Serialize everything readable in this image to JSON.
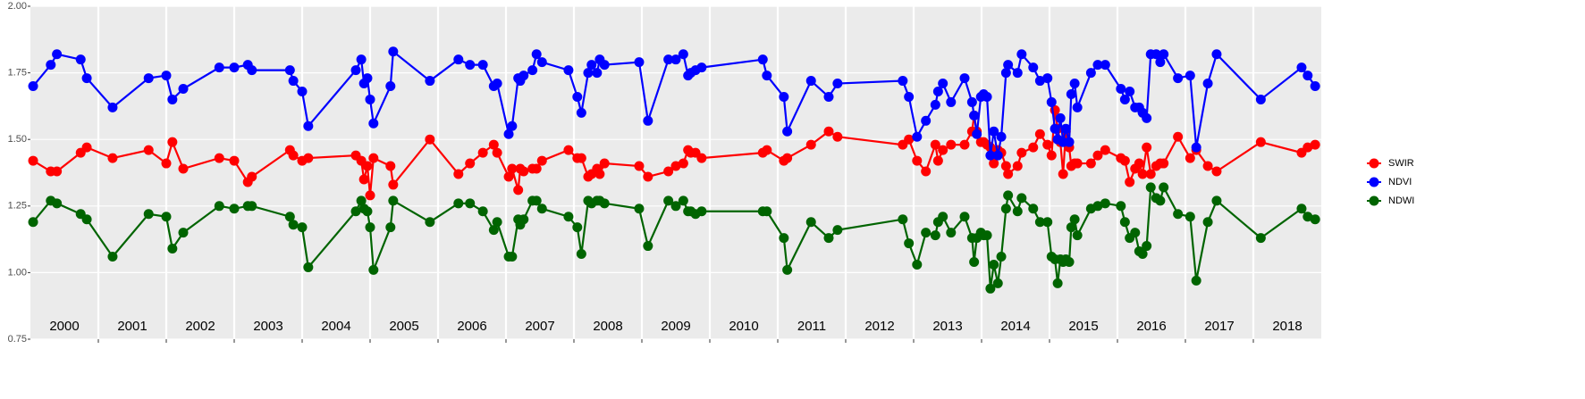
{
  "chart_data": {
    "type": "line",
    "x": [
      2000.04,
      2000.3,
      2000.39,
      2000.74,
      2000.83,
      2001.21,
      2001.74,
      2002.0,
      2002.09,
      2002.25,
      2002.78,
      2003.0,
      2003.2,
      2003.26,
      2003.82,
      2003.87,
      2004.0,
      2004.09,
      2004.79,
      2004.87,
      2004.91,
      2004.96,
      2005.0,
      2005.05,
      2005.3,
      2005.34,
      2005.88,
      2006.3,
      2006.47,
      2006.66,
      2006.82,
      2006.87,
      2007.04,
      2007.09,
      2007.18,
      2007.21,
      2007.26,
      2007.39,
      2007.45,
      2007.53,
      2007.92,
      2008.05,
      2008.11,
      2008.21,
      2008.26,
      2008.34,
      2008.38,
      2008.45,
      2008.96,
      2009.09,
      2009.39,
      2009.5,
      2009.61,
      2009.68,
      2009.72,
      2009.79,
      2009.88,
      2010.78,
      2010.84,
      2011.09,
      2011.14,
      2011.49,
      2011.75,
      2011.88,
      2012.84,
      2012.93,
      2013.05,
      2013.18,
      2013.32,
      2013.36,
      2013.43,
      2013.55,
      2013.75,
      2013.86,
      2013.89,
      2013.93,
      2013.99,
      2014.03,
      2014.08,
      2014.13,
      2014.18,
      2014.24,
      2014.29,
      2014.36,
      2014.39,
      2014.53,
      2014.59,
      2014.76,
      2014.86,
      2014.97,
      2015.03,
      2015.08,
      2015.12,
      2015.16,
      2015.2,
      2015.24,
      2015.29,
      2015.32,
      2015.37,
      2015.41,
      2015.61,
      2015.71,
      2015.82,
      2016.05,
      2016.11,
      2016.18,
      2016.26,
      2016.32,
      2016.37,
      2016.43,
      2016.49,
      2016.57,
      2016.63,
      2016.68,
      2016.89,
      2017.07,
      2017.16,
      2017.33,
      2017.46,
      2018.11,
      2018.71,
      2018.8,
      2018.91
    ],
    "series": [
      {
        "name": "SWIR",
        "color": "#ff0000",
        "values": [
          1.42,
          1.38,
          1.38,
          1.45,
          1.47,
          1.43,
          1.46,
          1.41,
          1.49,
          1.39,
          1.43,
          1.42,
          1.34,
          1.36,
          1.46,
          1.44,
          1.42,
          1.43,
          1.44,
          1.42,
          1.35,
          1.4,
          1.29,
          1.43,
          1.4,
          1.33,
          1.5,
          1.37,
          1.41,
          1.45,
          1.48,
          1.45,
          1.36,
          1.39,
          1.31,
          1.39,
          1.38,
          1.39,
          1.39,
          1.42,
          1.46,
          1.43,
          1.43,
          1.36,
          1.37,
          1.39,
          1.37,
          1.41,
          1.4,
          1.36,
          1.38,
          1.4,
          1.41,
          1.46,
          1.45,
          1.45,
          1.43,
          1.45,
          1.46,
          1.42,
          1.43,
          1.48,
          1.53,
          1.51,
          1.48,
          1.5,
          1.42,
          1.38,
          1.48,
          1.42,
          1.46,
          1.48,
          1.48,
          1.53,
          1.59,
          1.53,
          1.49,
          1.49,
          1.48,
          1.47,
          1.41,
          1.46,
          1.45,
          1.4,
          1.37,
          1.4,
          1.45,
          1.47,
          1.52,
          1.48,
          1.44,
          1.61,
          1.54,
          1.49,
          1.37,
          1.53,
          1.47,
          1.4,
          1.41,
          1.41,
          1.41,
          1.44,
          1.46,
          1.43,
          1.42,
          1.34,
          1.39,
          1.41,
          1.37,
          1.47,
          1.37,
          1.4,
          1.41,
          1.41,
          1.51,
          1.43,
          1.46,
          1.4,
          1.38,
          1.49,
          1.45,
          1.47,
          1.48
        ]
      },
      {
        "name": "NDVI",
        "color": "#0000ff",
        "values": [
          1.7,
          1.78,
          1.82,
          1.8,
          1.73,
          1.62,
          1.73,
          1.74,
          1.65,
          1.69,
          1.77,
          1.77,
          1.78,
          1.76,
          1.76,
          1.72,
          1.68,
          1.55,
          1.76,
          1.8,
          1.71,
          1.73,
          1.65,
          1.56,
          1.7,
          1.83,
          1.72,
          1.8,
          1.78,
          1.78,
          1.7,
          1.71,
          1.52,
          1.55,
          1.73,
          1.72,
          1.74,
          1.76,
          1.82,
          1.79,
          1.76,
          1.66,
          1.6,
          1.75,
          1.78,
          1.75,
          1.8,
          1.78,
          1.79,
          1.57,
          1.8,
          1.8,
          1.82,
          1.74,
          1.75,
          1.76,
          1.77,
          1.8,
          1.74,
          1.66,
          1.53,
          1.72,
          1.66,
          1.71,
          1.72,
          1.66,
          1.51,
          1.57,
          1.63,
          1.68,
          1.71,
          1.64,
          1.73,
          1.64,
          1.59,
          1.52,
          1.66,
          1.67,
          1.66,
          1.44,
          1.53,
          1.44,
          1.51,
          1.75,
          1.78,
          1.75,
          1.82,
          1.77,
          1.72,
          1.73,
          1.64,
          1.54,
          1.5,
          1.58,
          1.49,
          1.54,
          1.49,
          1.67,
          1.71,
          1.62,
          1.75,
          1.78,
          1.78,
          1.69,
          1.65,
          1.68,
          1.62,
          1.62,
          1.6,
          1.58,
          1.82,
          1.82,
          1.79,
          1.82,
          1.73,
          1.74,
          1.47,
          1.71,
          1.82,
          1.65,
          1.77,
          1.74,
          1.7
        ]
      },
      {
        "name": "NDWI",
        "color": "#006400",
        "values": [
          1.19,
          1.27,
          1.26,
          1.22,
          1.2,
          1.06,
          1.22,
          1.21,
          1.09,
          1.15,
          1.25,
          1.24,
          1.25,
          1.25,
          1.21,
          1.18,
          1.17,
          1.02,
          1.23,
          1.27,
          1.24,
          1.23,
          1.17,
          1.01,
          1.17,
          1.27,
          1.19,
          1.26,
          1.26,
          1.23,
          1.16,
          1.19,
          1.06,
          1.06,
          1.2,
          1.18,
          1.2,
          1.27,
          1.27,
          1.24,
          1.21,
          1.17,
          1.07,
          1.27,
          1.26,
          1.27,
          1.27,
          1.26,
          1.24,
          1.1,
          1.27,
          1.25,
          1.27,
          1.23,
          1.23,
          1.22,
          1.23,
          1.23,
          1.23,
          1.13,
          1.01,
          1.19,
          1.13,
          1.16,
          1.2,
          1.11,
          1.03,
          1.15,
          1.14,
          1.19,
          1.21,
          1.15,
          1.21,
          1.13,
          1.04,
          1.13,
          1.15,
          1.14,
          1.14,
          0.94,
          1.03,
          0.96,
          1.06,
          1.24,
          1.29,
          1.23,
          1.28,
          1.24,
          1.19,
          1.19,
          1.06,
          1.05,
          0.96,
          1.05,
          1.04,
          1.05,
          1.04,
          1.17,
          1.2,
          1.14,
          1.24,
          1.25,
          1.26,
          1.25,
          1.19,
          1.13,
          1.15,
          1.08,
          1.07,
          1.1,
          1.32,
          1.28,
          1.27,
          1.32,
          1.22,
          1.21,
          0.97,
          1.19,
          1.27,
          1.13,
          1.24,
          1.21,
          1.2
        ]
      }
    ],
    "year_labels": [
      "2000",
      "2001",
      "2002",
      "2003",
      "2004",
      "2005",
      "2006",
      "2007",
      "2008",
      "2009",
      "2010",
      "2011",
      "2012",
      "2013",
      "2014",
      "2015",
      "2016",
      "2017",
      "2018"
    ],
    "xlim": [
      2000,
      2019
    ],
    "xticks": [
      2001,
      2002,
      2003,
      2004,
      2005,
      2006,
      2007,
      2008,
      2009,
      2010,
      2011,
      2012,
      2013,
      2014,
      2015,
      2016,
      2017,
      2018
    ],
    "ylim": [
      0.75,
      2.0
    ],
    "yticks": [
      {
        "value": 0.75,
        "label": "0.75"
      },
      {
        "value": 1.0,
        "label": "1.00"
      },
      {
        "value": 1.25,
        "label": "1.25"
      },
      {
        "value": 1.5,
        "label": "1.50"
      },
      {
        "value": 1.75,
        "label": "1.75"
      },
      {
        "value": 2.0,
        "label": "2.00"
      }
    ],
    "grid": true,
    "legend": "right"
  }
}
